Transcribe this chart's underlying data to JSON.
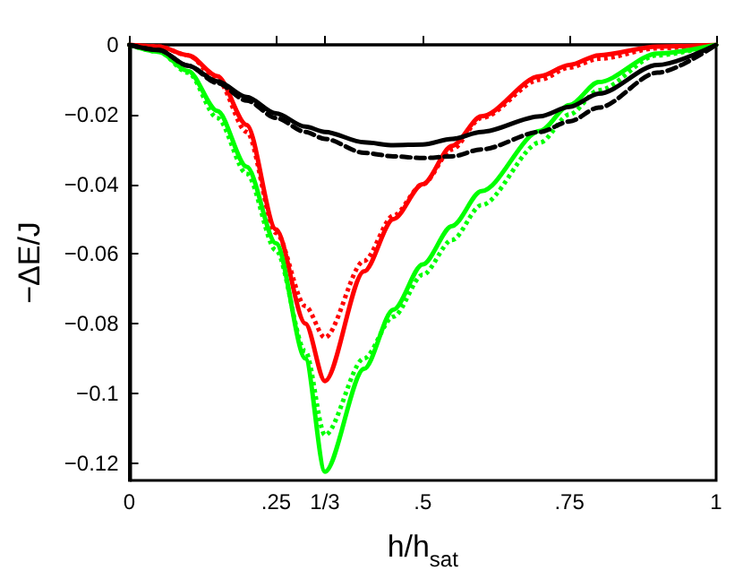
{
  "chart_data": {
    "type": "line",
    "xlabel": "h/h$_{sat}$",
    "ylabel": "−ΔE/J",
    "x": [
      0,
      0.05,
      0.1,
      0.15,
      0.2,
      0.25,
      0.3,
      0.3333,
      0.4,
      0.45,
      0.5,
      0.55,
      0.6,
      0.7,
      0.75,
      0.8,
      0.9,
      1
    ],
    "series": [
      {
        "color": "#ff0000",
        "line_style": "solid",
        "values": [
          0,
          -0.0005,
          -0.003,
          -0.009,
          -0.023,
          -0.053,
          -0.08,
          -0.0965,
          -0.065,
          -0.05,
          -0.04,
          -0.029,
          -0.0205,
          -0.009,
          -0.0058,
          -0.003,
          -0.0005,
          0
        ]
      },
      {
        "color": "#ff0000",
        "line_style": "dotted",
        "values": [
          0,
          -0.0005,
          -0.003,
          -0.01,
          -0.025,
          -0.054,
          -0.075,
          -0.084,
          -0.062,
          -0.049,
          -0.04,
          -0.03,
          -0.021,
          -0.01,
          -0.0065,
          -0.004,
          -0.001,
          0
        ]
      },
      {
        "color": "#00ff00",
        "line_style": "solid",
        "values": [
          0,
          -0.002,
          -0.0075,
          -0.019,
          -0.035,
          -0.057,
          -0.09,
          -0.1225,
          -0.093,
          -0.076,
          -0.063,
          -0.052,
          -0.042,
          -0.0247,
          -0.0173,
          -0.0107,
          -0.0025,
          0
        ]
      },
      {
        "color": "#00ff00",
        "line_style": "dotted",
        "values": [
          0,
          -0.002,
          -0.008,
          -0.021,
          -0.037,
          -0.059,
          -0.088,
          -0.112,
          -0.09,
          -0.078,
          -0.066,
          -0.056,
          -0.046,
          -0.028,
          -0.02,
          -0.013,
          -0.003,
          0
        ]
      },
      {
        "color": "#000000",
        "line_style": "solid",
        "values": [
          0,
          -0.0015,
          -0.006,
          -0.0105,
          -0.015,
          -0.0197,
          -0.0235,
          -0.025,
          -0.028,
          -0.0288,
          -0.0286,
          -0.027,
          -0.025,
          -0.0205,
          -0.0178,
          -0.014,
          -0.0058,
          0
        ]
      },
      {
        "color": "#000000",
        "line_style": "dashed",
        "values": [
          0,
          -0.0015,
          -0.006,
          -0.011,
          -0.016,
          -0.021,
          -0.025,
          -0.027,
          -0.031,
          -0.032,
          -0.0325,
          -0.032,
          -0.03,
          -0.025,
          -0.022,
          -0.018,
          -0.008,
          0
        ]
      }
    ],
    "xlim": [
      0,
      1
    ],
    "xticks": [
      0,
      {
        "value": 0.25,
        "label": ".25"
      },
      {
        "value": 0.3333,
        "label": "1/3"
      },
      {
        "value": 0.5,
        "label": ".5"
      },
      {
        "value": 0.75,
        "label": ".75"
      },
      1
    ],
    "ylim": [
      -0.125,
      0
    ],
    "yticks": [
      0,
      {
        "value": -0.02,
        "label": "−0.02"
      },
      {
        "value": -0.04,
        "label": "−0.04"
      },
      {
        "value": -0.06,
        "label": "−0.06"
      },
      {
        "value": -0.08,
        "label": "−0.08"
      },
      {
        "value": -0.1,
        "label": "−0.1"
      },
      {
        "value": -0.12,
        "label": "−0.12"
      }
    ],
    "grid": false,
    "marker": "none"
  }
}
